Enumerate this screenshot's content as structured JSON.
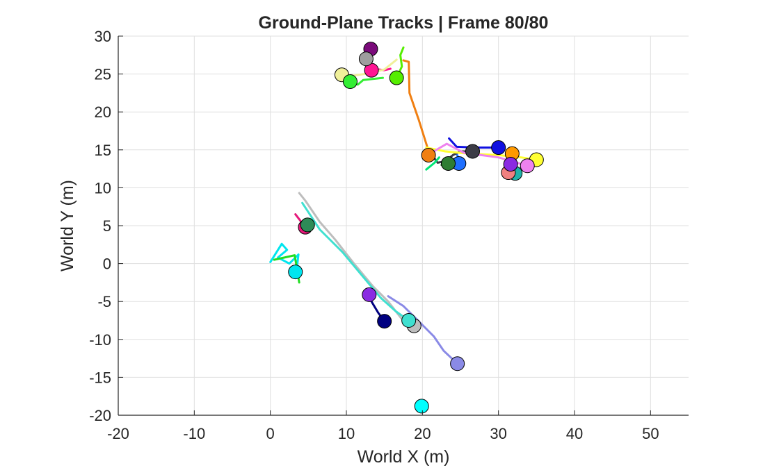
{
  "chart_data": {
    "type": "scatter",
    "title": "Ground-Plane Tracks | Frame 80/80",
    "xlabel": "World X (m)",
    "ylabel": "World Y (m)",
    "xlim": [
      -20,
      55
    ],
    "ylim": [
      -20,
      30
    ],
    "xticks": [
      -20,
      -10,
      0,
      10,
      20,
      30,
      40,
      50
    ],
    "yticks": [
      30,
      25,
      20,
      15,
      10,
      5,
      0,
      -5,
      -10,
      -15,
      -20
    ],
    "grid": true,
    "tracks": [
      {
        "color": "#f07f12",
        "trail": [
          [
            17.5,
            26.8
          ],
          [
            18.2,
            26.6
          ],
          [
            18.3,
            22.5
          ],
          [
            19.5,
            19
          ],
          [
            20.6,
            15.5
          ],
          [
            20.8,
            14.5
          ]
        ],
        "x": 20.8,
        "y": 14.3
      },
      {
        "color": "#ff9900",
        "trail": [
          [
            31.5,
            14.6
          ],
          [
            31.8,
            14.4
          ]
        ],
        "x": 31.8,
        "y": 14.5
      },
      {
        "color": "#1f6fff",
        "trail": [
          [
            24.5,
            14.5
          ],
          [
            25,
            13.3
          ]
        ],
        "x": 24.8,
        "y": 13.2
      },
      {
        "color": "#3c3c46",
        "trail": [
          [
            21.5,
            14
          ],
          [
            22,
            13.3
          ],
          [
            23,
            13.5
          ],
          [
            24,
            14.3
          ],
          [
            25,
            14.8
          ],
          [
            26.6,
            14.8
          ]
        ],
        "x": 26.6,
        "y": 14.8
      },
      {
        "color": "#1010e0",
        "trail": [
          [
            23.5,
            16.5
          ],
          [
            24.5,
            15.4
          ],
          [
            27,
            15.3
          ],
          [
            30,
            15.3
          ]
        ],
        "x": 30.0,
        "y": 15.3
      },
      {
        "color": "#ffff33",
        "trail": [
          [
            20.5,
            15.3
          ],
          [
            23,
            14.8
          ],
          [
            26,
            14.5
          ],
          [
            30,
            14.3
          ],
          [
            33,
            14.0
          ],
          [
            35,
            13.7
          ]
        ],
        "x": 35.0,
        "y": 13.7
      },
      {
        "color": "#ee82ee",
        "trail": [
          [
            21.5,
            14.8
          ],
          [
            23.2,
            15.8
          ],
          [
            25.5,
            14.6
          ],
          [
            30,
            14.0
          ],
          [
            33.8,
            12.9
          ]
        ],
        "x": 33.8,
        "y": 12.9
      },
      {
        "color": "#2e7d32",
        "trail": [
          [
            22.5,
            13.0
          ],
          [
            23.4,
            13.2
          ]
        ],
        "x": 23.4,
        "y": 13.2
      },
      {
        "color": "#20b2aa",
        "trail": [
          [
            31.7,
            12.3
          ],
          [
            32.2,
            11.9
          ]
        ],
        "x": 32.2,
        "y": 11.9
      },
      {
        "color": "#f08080",
        "trail": [
          [
            31.2,
            12.3
          ],
          [
            31.3,
            12.0
          ]
        ],
        "x": 31.3,
        "y": 12.0
      },
      {
        "color": "#8a2be2",
        "trail": [
          [
            31.2,
            13.6
          ],
          [
            31.6,
            13.1
          ]
        ],
        "x": 31.6,
        "y": 13.1
      },
      {
        "color": "#00e676",
        "trail": [
          [
            20.5,
            12.4
          ],
          [
            21.6,
            13.3
          ],
          [
            22.2,
            14.0
          ]
        ],
        "x": null,
        "y": null
      },
      {
        "color": "#7a0a7a",
        "trail": [
          [
            13.2,
            29.0
          ],
          [
            13.2,
            28.3
          ]
        ],
        "x": 13.2,
        "y": 28.3
      },
      {
        "color": "#ff1493",
        "trail": [
          [
            12.8,
            25.8
          ],
          [
            13.5,
            25.7
          ],
          [
            15,
            25.5
          ],
          [
            15.8,
            25.7
          ]
        ],
        "x": 13.3,
        "y": 25.5
      },
      {
        "color": "#9e9e9e",
        "trail": [
          [
            12.6,
            27.2
          ],
          [
            12.8,
            27.0
          ]
        ],
        "x": 12.6,
        "y": 27.0
      },
      {
        "color": "#f0f09a",
        "trail": [
          [
            9.4,
            24.9
          ],
          [
            11,
            24.8
          ],
          [
            13,
            25.1
          ],
          [
            15,
            25.6
          ],
          [
            16.6,
            26.9
          ]
        ],
        "x": 9.4,
        "y": 24.9
      },
      {
        "color": "#33ee33",
        "trail": [
          [
            10.5,
            24.0
          ],
          [
            11.5,
            23.6
          ],
          [
            12.2,
            24.2
          ],
          [
            14.8,
            24.5
          ]
        ],
        "x": 10.5,
        "y": 24.0
      },
      {
        "color": "#55ee00",
        "trail": [
          [
            16.6,
            24.5
          ],
          [
            17.3,
            26
          ],
          [
            17.1,
            27.5
          ],
          [
            17.5,
            28.5
          ]
        ],
        "x": 16.6,
        "y": 24.5
      },
      {
        "color": "#e6187a",
        "trail": [
          [
            3.3,
            6.5
          ],
          [
            4.6,
            4.8
          ]
        ],
        "x": 4.6,
        "y": 4.8
      },
      {
        "color": "#2e8b57",
        "trail": [
          [
            4.8,
            5.4
          ],
          [
            5.0,
            5.1
          ]
        ],
        "x": 4.9,
        "y": 5.1
      },
      {
        "color": "#00e5ee",
        "trail": [
          [
            0,
            0.2
          ],
          [
            1.5,
            2.6
          ],
          [
            2.2,
            1.8
          ],
          [
            1,
            0.8
          ],
          [
            2.5,
            0
          ],
          [
            3.7,
            1.2
          ],
          [
            3.5,
            -0.5
          ],
          [
            3.3,
            -1.1
          ]
        ],
        "x": 3.3,
        "y": -1.1
      },
      {
        "color": "#22dd22",
        "trail": [
          [
            0.5,
            0.5
          ],
          [
            3.2,
            1.1
          ],
          [
            3.5,
            -0.7
          ],
          [
            3.8,
            -2.5
          ]
        ],
        "x": null,
        "y": null
      },
      {
        "color": "#bdbdbd",
        "trail": [
          [
            3.8,
            9.3
          ],
          [
            4.6,
            8.3
          ],
          [
            6.5,
            5.5
          ],
          [
            8.5,
            3.2
          ],
          [
            11,
            0
          ],
          [
            13.5,
            -3
          ],
          [
            15.5,
            -5
          ],
          [
            17.2,
            -7.2
          ],
          [
            18.9,
            -8.2
          ]
        ],
        "x": 18.9,
        "y": -8.2
      },
      {
        "color": "#40e0d0",
        "trail": [
          [
            4.2,
            8.0
          ],
          [
            6.5,
            4.5
          ],
          [
            9.5,
            1.5
          ],
          [
            12,
            -1.5
          ],
          [
            14.5,
            -4.5
          ],
          [
            16.5,
            -6.3
          ],
          [
            18.2,
            -7.5
          ]
        ],
        "x": 18.2,
        "y": -7.5
      },
      {
        "color": "#8a8ae6",
        "trail": [
          [
            15.5,
            -4.3
          ],
          [
            17.5,
            -5.6
          ],
          [
            19.5,
            -7.6
          ],
          [
            21.5,
            -9.6
          ],
          [
            22.8,
            -11.5
          ],
          [
            24.6,
            -13.2
          ]
        ],
        "x": 24.6,
        "y": -13.2
      },
      {
        "color": "#8a2be2",
        "trail": [
          [
            12.5,
            -3.6
          ],
          [
            13,
            -4.1
          ]
        ],
        "x": 13.0,
        "y": -4.1
      },
      {
        "color": "#000080",
        "trail": [
          [
            13,
            -4.5
          ],
          [
            14.2,
            -6.5
          ],
          [
            15.0,
            -7.6
          ]
        ],
        "x": 15.0,
        "y": -7.6
      },
      {
        "color": "#00ffff",
        "trail": [
          [
            19.9,
            -18.8
          ]
        ],
        "x": 19.9,
        "y": -18.8
      }
    ]
  }
}
